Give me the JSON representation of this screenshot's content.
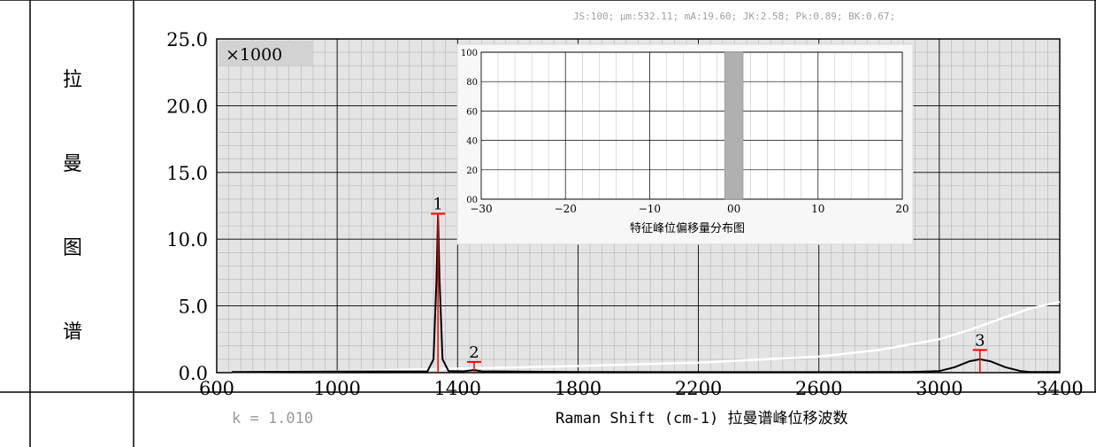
{
  "side_labels": [
    "拉",
    "曼",
    "图",
    "谱"
  ],
  "stats_line": "JS:100;  μm:532.11;  mA:19.60;  JK:2.58;  Pk:0.89;  BK:0.67;",
  "multiplier": "×1000",
  "k_value": "k = 1.010",
  "colors": {
    "plot_bg": "#e4e4e4",
    "spectrum": "#000000",
    "baseline": "#ffffff",
    "peak_marker": "#ff0000",
    "stats_text": "#a0a0a0",
    "inset_bar": "#b0b0b0"
  },
  "chart_data": [
    {
      "type": "line",
      "title": "",
      "xlabel": "Raman Shift (cm-1)  拉曼谱峰位移波数",
      "ylabel": "",
      "xlim": [
        600,
        3400
      ],
      "ylim": [
        0,
        25
      ],
      "x_ticks": [
        600,
        1000,
        1400,
        1800,
        2200,
        2600,
        3000,
        3400
      ],
      "x_tick_labels": [
        "600",
        "1000",
        "1400",
        "1800",
        "2200",
        "2600",
        "3000",
        "3400"
      ],
      "y_ticks": [
        0,
        5,
        10,
        15,
        20,
        25
      ],
      "y_tick_labels": [
        "0.0",
        "5.0",
        "10.0",
        "15.0",
        "20.0",
        "25.0"
      ],
      "grid": true,
      "peaks": [
        {
          "label": "1",
          "x": 1335,
          "y": 11.9
        },
        {
          "label": "2",
          "x": 1455,
          "y": 0.8
        },
        {
          "label": "3",
          "x": 3135,
          "y": 1.7
        }
      ],
      "series": [
        {
          "x": [
            650,
            1000,
            1300,
            1320,
            1330,
            1335,
            1340,
            1350,
            1370,
            1420,
            1455,
            1480,
            1800,
            2200,
            2600,
            2900,
            3000,
            3050,
            3100,
            3135,
            3170,
            3220,
            3270,
            3300,
            3400
          ],
          "y": [
            0.05,
            0.08,
            0.1,
            1.0,
            7.0,
            11.8,
            7.0,
            1.0,
            0.12,
            0.1,
            0.2,
            0.1,
            0.05,
            0.04,
            0.04,
            0.05,
            0.12,
            0.4,
            0.85,
            1.0,
            0.85,
            0.4,
            0.12,
            0.05,
            0.05
          ]
        },
        {
          "x": [
            650,
            1000,
            1400,
            1800,
            2200,
            2600,
            2800,
            3000,
            3100,
            3200,
            3300,
            3400
          ],
          "y": [
            0.05,
            0.1,
            0.3,
            0.5,
            0.75,
            1.2,
            1.7,
            2.5,
            3.2,
            4.0,
            4.8,
            5.3
          ]
        }
      ]
    },
    {
      "type": "bar",
      "title": "特征峰位偏移量分布图",
      "xlim": [
        -30,
        20
      ],
      "ylim": [
        0,
        100
      ],
      "x_ticks": [
        -30,
        -20,
        -10,
        0,
        10,
        20
      ],
      "x_tick_labels": [
        "−30",
        "−20",
        "−10",
        "00",
        "10",
        "20"
      ],
      "y_ticks": [
        0,
        20,
        40,
        60,
        80,
        100
      ],
      "y_tick_labels": [
        "00",
        "20",
        "40",
        "60",
        "80",
        "100"
      ],
      "bars": [
        {
          "x": 0,
          "value": 100
        }
      ]
    }
  ]
}
